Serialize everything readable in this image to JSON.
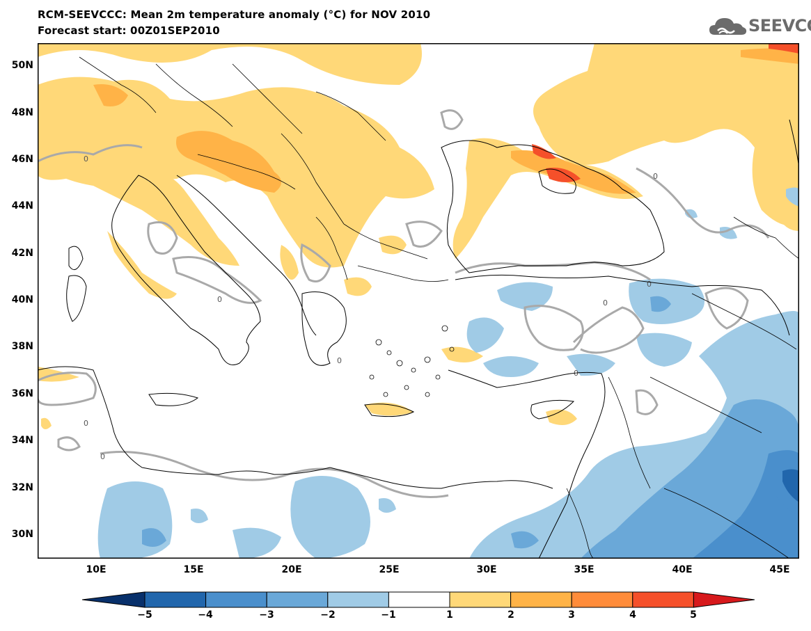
{
  "header": {
    "title": "RCM-SEEVCCC: Mean 2m temperature anomaly (°C) for NOV 2010",
    "subtitle": "Forecast start: 00Z01SEP2010"
  },
  "logo": {
    "text": "SEEVCCC",
    "icon": "cloud-icon"
  },
  "axes": {
    "lat_labels": [
      "50N",
      "48N",
      "46N",
      "44N",
      "42N",
      "40N",
      "38N",
      "36N",
      "34N",
      "32N",
      "30N"
    ],
    "lon_labels": [
      "10E",
      "15E",
      "20E",
      "25E",
      "30E",
      "35E",
      "40E",
      "45E"
    ],
    "lon_range": [
      7,
      46
    ],
    "lat_range": [
      29,
      51
    ]
  },
  "contour_label": "0",
  "colorbar": {
    "labels": [
      "−5",
      "−4",
      "−3",
      "−2",
      "−1",
      "1",
      "2",
      "3",
      "4",
      "5"
    ],
    "colors": [
      "#08306b",
      "#2166ac",
      "#4a8fcc",
      "#6aa8d8",
      "#a0cbe6",
      "#ffffff",
      "#ffd878",
      "#ffb347",
      "#ff8c3a",
      "#f5502a",
      "#d7191c"
    ]
  },
  "map": {
    "ocean_color": "#ffffff",
    "border_color": "#000000",
    "contour_color": "#a9a9a9"
  }
}
